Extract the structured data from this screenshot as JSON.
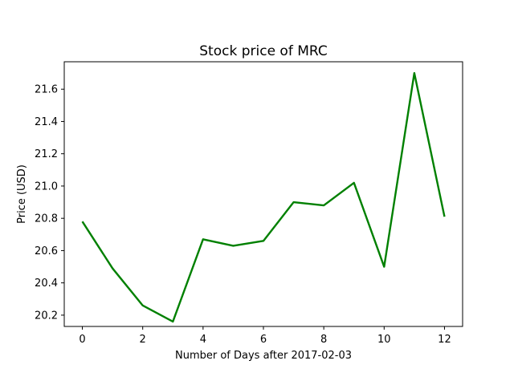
{
  "chart_data": {
    "type": "line",
    "title": "Stock price of MRC",
    "xlabel": "Number of Days after 2017-02-03",
    "ylabel": "Price (USD)",
    "xlim": [
      -0.6,
      12.6
    ],
    "ylim": [
      20.13,
      21.77
    ],
    "xticks": [
      0,
      2,
      4,
      6,
      8,
      10,
      12
    ],
    "yticks": [
      20.2,
      20.4,
      20.6,
      20.8,
      21.0,
      21.2,
      21.4,
      21.6
    ],
    "ytick_labels": [
      "20.2",
      "20.4",
      "20.6",
      "20.8",
      "21.0",
      "21.2",
      "21.4",
      "21.6"
    ],
    "grid": false,
    "series": [
      {
        "color": "#008000",
        "x": [
          0,
          1,
          2,
          3,
          4,
          5,
          6,
          7,
          8,
          9,
          10,
          11,
          12
        ],
        "y": [
          20.78,
          20.49,
          20.26,
          20.16,
          20.67,
          20.63,
          20.66,
          20.9,
          20.88,
          21.02,
          20.5,
          21.7,
          20.81
        ]
      }
    ]
  }
}
